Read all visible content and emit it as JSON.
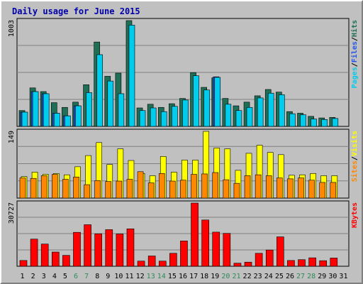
{
  "chart_data": [
    {
      "type": "bar",
      "title": "Daily usage for June 2015",
      "categories": [
        "1",
        "2",
        "3",
        "4",
        "5",
        "6",
        "7",
        "8",
        "9",
        "10",
        "11",
        "12",
        "13",
        "14",
        "15",
        "16",
        "17",
        "18",
        "19",
        "20",
        "21",
        "22",
        "23",
        "24",
        "25",
        "26",
        "27",
        "28",
        "29",
        "30",
        "31"
      ],
      "weekend_days": [
        "6",
        "7",
        "13",
        "14",
        "20",
        "21",
        "27",
        "28"
      ],
      "max_label": "1003",
      "ylim": [
        0,
        1003
      ],
      "legend": [
        "Pages",
        "/",
        "Files",
        "/",
        "Hits"
      ],
      "series": [
        {
          "name": "Hits",
          "color": "#1f6f57",
          "values": [
            150,
            365,
            330,
            225,
            180,
            230,
            395,
            800,
            475,
            505,
            1003,
            175,
            210,
            180,
            215,
            265,
            510,
            370,
            460,
            265,
            195,
            230,
            290,
            350,
            325,
            140,
            125,
            95,
            80,
            85,
            0
          ]
        },
        {
          "name": "Files",
          "color": "#2255ee",
          "values": [
            135,
            330,
            310,
            125,
            100,
            195,
            0,
            0,
            0,
            0,
            0,
            0,
            0,
            0,
            0,
            0,
            0,
            0,
            470,
            0,
            0,
            0,
            0,
            0,
            0,
            0,
            0,
            0,
            0,
            0,
            0
          ]
        },
        {
          "name": "Pages",
          "color": "#00ccee",
          "values": [
            135,
            330,
            310,
            125,
            100,
            195,
            320,
            680,
            430,
            310,
            960,
            150,
            175,
            140,
            190,
            250,
            480,
            345,
            465,
            210,
            150,
            180,
            270,
            315,
            300,
            120,
            110,
            70,
            65,
            75,
            0
          ]
        }
      ]
    },
    {
      "type": "bar",
      "categories": [
        "1",
        "2",
        "3",
        "4",
        "5",
        "6",
        "7",
        "8",
        "9",
        "10",
        "11",
        "12",
        "13",
        "14",
        "15",
        "16",
        "17",
        "18",
        "19",
        "20",
        "21",
        "22",
        "23",
        "24",
        "25",
        "26",
        "27",
        "28",
        "29",
        "30",
        "31"
      ],
      "max_label": "149",
      "ylim": [
        0,
        149
      ],
      "legend": [
        "Sites",
        "/",
        "Visits"
      ],
      "series": [
        {
          "name": "Visits",
          "color": "#ffff00",
          "values": [
            48,
            58,
            53,
            55,
            52,
            70,
            95,
            124,
            75,
            110,
            84,
            55,
            50,
            93,
            58,
            85,
            85,
            149,
            112,
            110,
            62,
            100,
            118,
            102,
            97,
            51,
            52,
            55,
            50,
            50,
            0
          ]
        },
        {
          "name": "Sites",
          "color": "#ff8800",
          "values": [
            45,
            44,
            50,
            53,
            42,
            47,
            30,
            39,
            37,
            38,
            42,
            59,
            34,
            55,
            38,
            40,
            53,
            54,
            57,
            41,
            33,
            50,
            52,
            50,
            45,
            43,
            45,
            40,
            35,
            35,
            0
          ]
        }
      ]
    },
    {
      "type": "bar",
      "categories": [
        "1",
        "2",
        "3",
        "4",
        "5",
        "6",
        "7",
        "8",
        "9",
        "10",
        "11",
        "12",
        "13",
        "14",
        "15",
        "16",
        "17",
        "18",
        "19",
        "20",
        "21",
        "22",
        "23",
        "24",
        "25",
        "26",
        "27",
        "28",
        "29",
        "30",
        "31"
      ],
      "max_label": "30727",
      "ylim": [
        0,
        30727
      ],
      "legend": [
        "KBytes"
      ],
      "series": [
        {
          "name": "KBytes",
          "color": "#ff0000",
          "values": [
            2800,
            13200,
            10800,
            6900,
            5300,
            16500,
            20200,
            15800,
            17800,
            15700,
            18200,
            2500,
            5000,
            2500,
            6300,
            12300,
            30727,
            22500,
            16600,
            16000,
            1500,
            2000,
            6300,
            7900,
            14300,
            2800,
            3200,
            4100,
            2700,
            4000,
            0
          ]
        }
      ]
    }
  ]
}
